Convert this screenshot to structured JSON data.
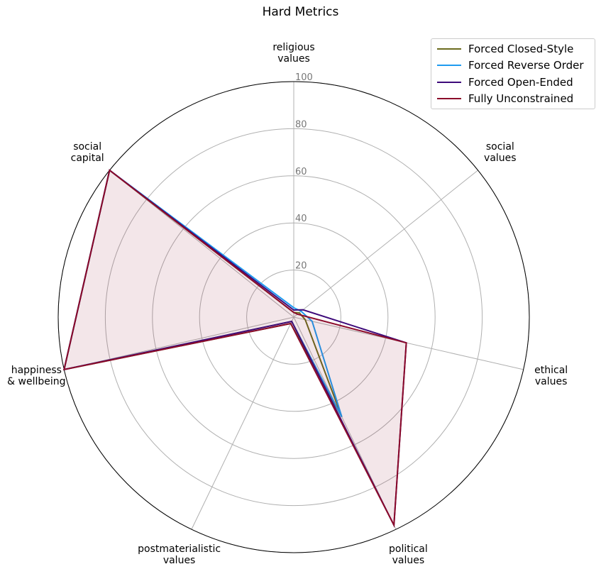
{
  "chart_data": {
    "type": "radar",
    "title": "Hard Metrics",
    "categories": [
      "religious\nvalues",
      "social\nvalues",
      "ethical\nvalues",
      "political\nvalues",
      "postmaterialistic\nvalues",
      "happiness\n& wellbeing",
      "social\ncapital"
    ],
    "ylim": [
      0,
      100
    ],
    "yticks": [
      20,
      40,
      60,
      80,
      100
    ],
    "grid": true,
    "legend": "upper right",
    "series": [
      {
        "name": "Forced Closed-Style",
        "color": "#6b6b1e",
        "values": [
          2,
          3,
          5,
          47,
          3,
          100,
          100
        ]
      },
      {
        "name": "Forced Reverse Order",
        "color": "#1f9bf0",
        "values": [
          4,
          4,
          8,
          47,
          2,
          100,
          100
        ]
      },
      {
        "name": "Forced Open-Ended",
        "color": "#3d0a7a",
        "values": [
          3,
          5,
          49,
          98,
          2,
          100,
          100
        ]
      },
      {
        "name": "Fully Unconstrained",
        "color": "#8b0a2a",
        "values": [
          2,
          2,
          49,
          98,
          3,
          100,
          100
        ],
        "fill": true
      }
    ]
  }
}
